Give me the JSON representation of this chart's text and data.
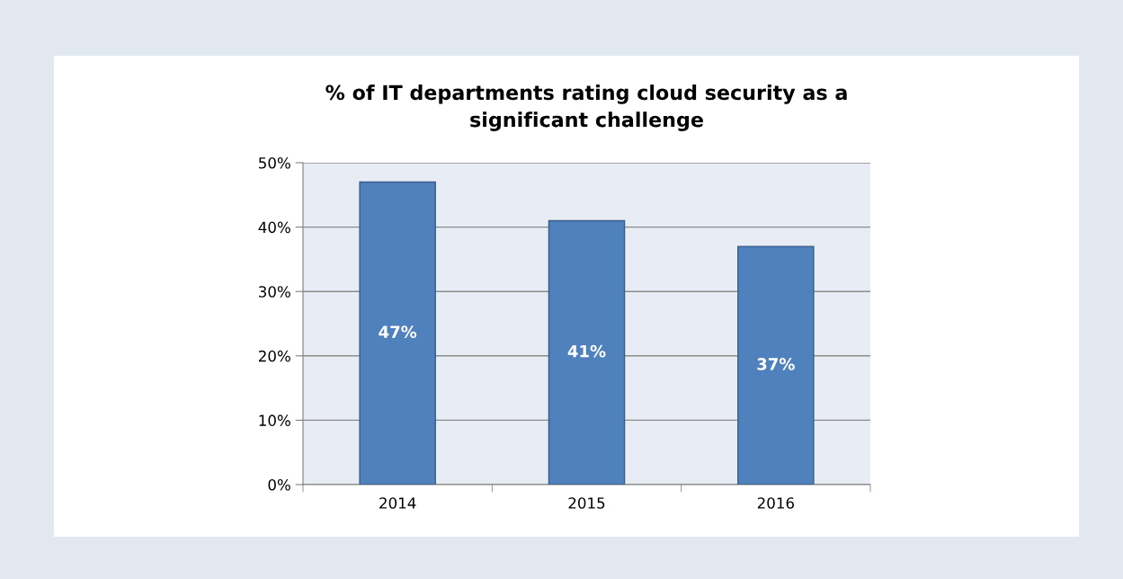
{
  "chart_data": {
    "type": "bar",
    "title": "% of IT departments rating cloud security as a\nsignificant challenge",
    "categories": [
      "2014",
      "2015",
      "2016"
    ],
    "values": [
      47,
      41,
      37
    ],
    "color": "#4f81bd",
    "value_labels": [
      "47%",
      "41%",
      "37%"
    ],
    "ylim": [
      0,
      50
    ],
    "yticks": [
      {
        "value": 0,
        "label": "0%"
      },
      {
        "value": 10,
        "label": "10%"
      },
      {
        "value": 20,
        "label": "20%"
      },
      {
        "value": 30,
        "label": "30%"
      },
      {
        "value": 40,
        "label": "40%"
      },
      {
        "value": 50,
        "label": "50%"
      }
    ],
    "grid": "y",
    "legend": false
  }
}
